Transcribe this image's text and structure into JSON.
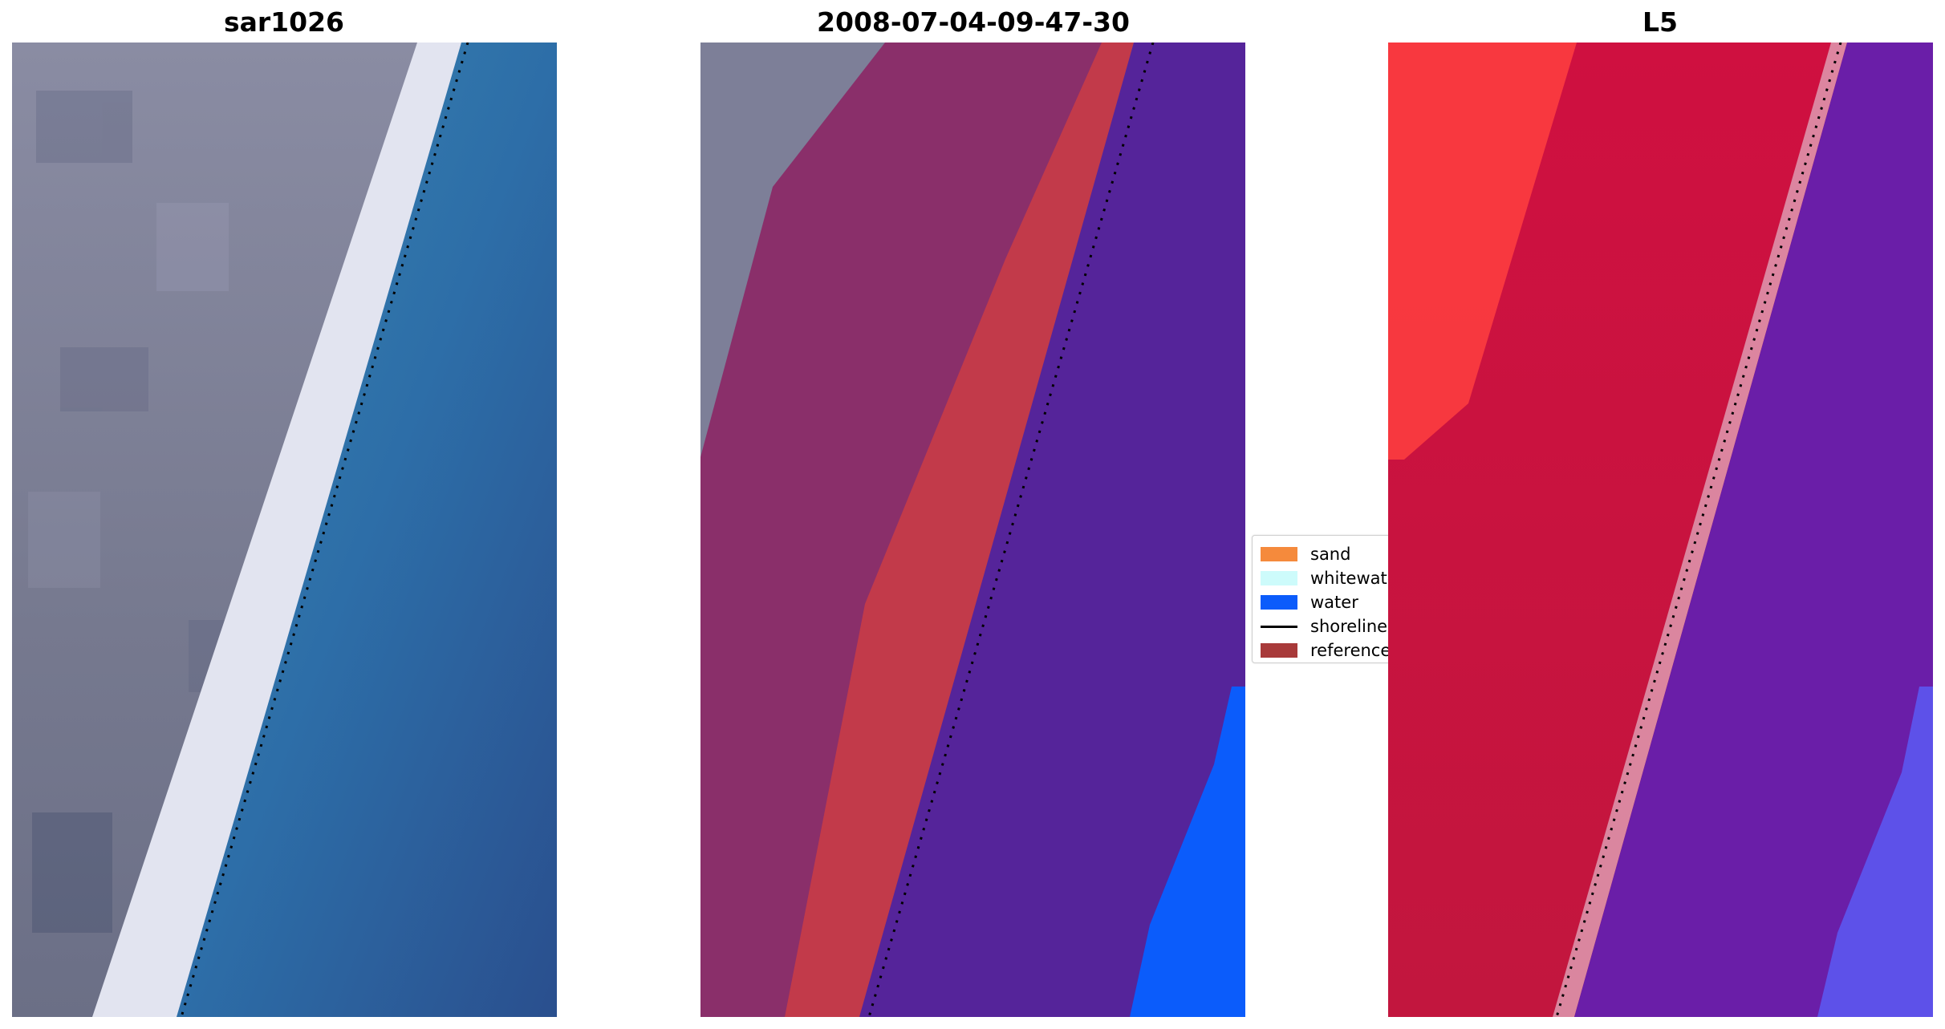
{
  "panels": [
    {
      "title": "sar1026"
    },
    {
      "title": "2008-07-04-09-47-30"
    },
    {
      "title": "L5"
    }
  ],
  "legend": {
    "items": [
      {
        "label": "sand",
        "color": "#f58a3c",
        "kind": "patch"
      },
      {
        "label": "whitewater",
        "color": "#cdfbfb",
        "kind": "patch"
      },
      {
        "label": "water",
        "color": "#0b5cfb",
        "kind": "patch"
      },
      {
        "label": "shoreline",
        "color": "#000000",
        "kind": "line"
      },
      {
        "label": "reference",
        "color": "#a83a3a",
        "kind": "patch"
      }
    ]
  },
  "colors": {
    "land": "#7d7f98",
    "whitewater": "#e2e4f0",
    "water": "#2e6fa8",
    "land_overlay": "#8a2f6a",
    "reference_overlay": "#c23a4a",
    "water_overlay": "#55249a",
    "water_class": "#0b5cfb",
    "probability_high": "#c0133e",
    "probability_low": "#6a1ea8",
    "probability_peak": "#ff3a3a"
  }
}
